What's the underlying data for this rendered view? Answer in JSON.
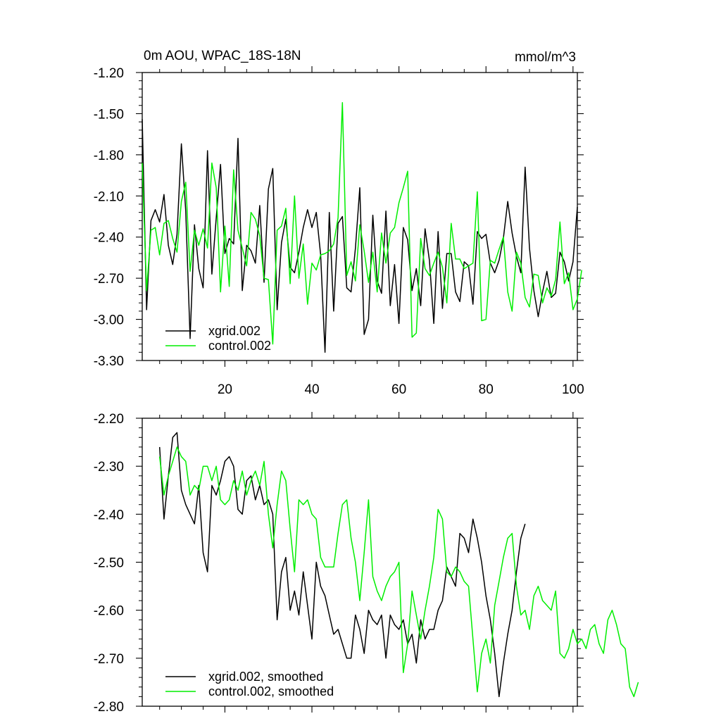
{
  "colors": {
    "xgrid": "#000000",
    "control": "#00ee00",
    "axis": "#000000",
    "background": "#ffffff"
  },
  "chart_data": [
    {
      "type": "line",
      "title": "0m AOU, WPAC_18S-18N",
      "units": "mmol/m^3",
      "xlabel": "",
      "ylabel": "",
      "xlim": [
        1,
        101
      ],
      "ylim": [
        -3.3,
        -1.2
      ],
      "yticks": [
        -1.2,
        -1.5,
        -1.8,
        -2.1,
        -2.4,
        -2.7,
        -3.0,
        -3.3
      ],
      "ytick_labels": [
        "-1.20",
        "-1.50",
        "-1.80",
        "-2.10",
        "-2.40",
        "-2.70",
        "-3.00",
        "-3.30"
      ],
      "xticks": [
        20,
        40,
        60,
        80,
        100
      ],
      "xtick_labels": [
        "20",
        "40",
        "60",
        "80",
        "100"
      ],
      "legend_position": "bottom-left",
      "series": [
        {
          "name": "xgrid.002",
          "color": "#000000",
          "x_start": 1,
          "values": [
            -1.54,
            -2.93,
            -2.28,
            -2.2,
            -2.29,
            -2.09,
            -2.46,
            -2.6,
            -2.38,
            -1.72,
            -2.21,
            -3.14,
            -2.31,
            -2.63,
            -2.77,
            -1.77,
            -2.67,
            -2.26,
            -1.87,
            -2.52,
            -2.41,
            -2.45,
            -1.68,
            -2.79,
            -2.46,
            -2.5,
            -2.59,
            -2.17,
            -2.73,
            -2.05,
            -1.9,
            -2.93,
            -2.44,
            -2.27,
            -2.62,
            -2.66,
            -2.51,
            -2.33,
            -2.2,
            -2.33,
            -2.22,
            -2.53,
            -3.24,
            -2.22,
            -2.94,
            -2.3,
            -2.25,
            -2.77,
            -2.8,
            -2.48,
            -2.04,
            -3.11,
            -3.0,
            -2.24,
            -2.72,
            -2.81,
            -2.21,
            -2.9,
            -2.6,
            -3.03,
            -2.33,
            -2.42,
            -2.79,
            -2.63,
            -2.9,
            -2.34,
            -2.57,
            -3.03,
            -2.36,
            -2.92,
            -2.52,
            -2.52,
            -2.8,
            -2.87,
            -2.58,
            -2.61,
            -2.89,
            -2.36,
            -2.41,
            -2.38,
            -2.59,
            -2.66,
            -2.57,
            -2.41,
            -2.14,
            -2.37,
            -2.54,
            -2.66,
            -1.89,
            -2.48,
            -2.79,
            -2.98,
            -2.8,
            -2.65,
            -2.84,
            -2.81,
            -2.51,
            -2.58,
            -2.72,
            -2.58,
            -2.18
          ]
        },
        {
          "name": "control.002",
          "color": "#00ee00",
          "x_start": 1,
          "values": [
            -1.86,
            -2.79,
            -2.35,
            -2.33,
            -2.53,
            -2.3,
            -2.28,
            -2.41,
            -2.51,
            -2.14,
            -2.0,
            -2.65,
            -2.35,
            -2.46,
            -2.34,
            -2.48,
            -1.86,
            -2.04,
            -2.8,
            -2.32,
            -2.76,
            -1.91,
            -2.35,
            -2.48,
            -2.61,
            -2.22,
            -2.27,
            -2.39,
            -2.7,
            -2.71,
            -3.18,
            -2.35,
            -2.32,
            -2.19,
            -2.74,
            -2.1,
            -2.7,
            -2.45,
            -2.89,
            -2.59,
            -2.64,
            -2.53,
            -2.52,
            -2.5,
            -2.45,
            -2.26,
            -1.42,
            -2.68,
            -2.58,
            -2.72,
            -2.31,
            -2.5,
            -2.73,
            -2.51,
            -2.8,
            -2.37,
            -2.59,
            -2.37,
            -2.33,
            -2.15,
            -2.04,
            -1.92,
            -3.13,
            -3.1,
            -2.41,
            -2.63,
            -2.68,
            -2.59,
            -2.51,
            -2.62,
            -2.88,
            -2.3,
            -2.56,
            -2.56,
            -2.63,
            -2.61,
            -2.59,
            -2.07,
            -3.01,
            -3.0,
            -2.57,
            -2.59,
            -2.49,
            -2.4,
            -2.8,
            -2.94,
            -2.51,
            -2.59,
            -2.84,
            -2.91,
            -2.67,
            -2.68,
            -2.88,
            -2.77,
            -2.83,
            -2.71,
            -2.29,
            -2.74,
            -2.66,
            -2.93,
            -2.85,
            -2.64
          ]
        }
      ]
    },
    {
      "type": "line",
      "title": "",
      "xlabel": "",
      "ylabel": "",
      "xlim": [
        1,
        101
      ],
      "ylim": [
        -2.8,
        -2.2
      ],
      "yticks": [
        -2.2,
        -2.3,
        -2.4,
        -2.5,
        -2.6,
        -2.7,
        -2.8
      ],
      "ytick_labels": [
        "-2.20",
        "-2.30",
        "-2.40",
        "-2.50",
        "-2.60",
        "-2.70",
        "-2.80"
      ],
      "xticks": [
        20,
        40,
        60,
        80,
        100
      ],
      "xtick_labels": [],
      "legend_position": "bottom-left",
      "series": [
        {
          "name": "xgrid.002, smoothed",
          "color": "#000000",
          "x_start": 5,
          "values": [
            -2.26,
            -2.41,
            -2.32,
            -2.24,
            -2.23,
            -2.35,
            -2.38,
            -2.4,
            -2.42,
            -2.34,
            -2.48,
            -2.52,
            -2.34,
            -2.36,
            -2.33,
            -2.29,
            -2.28,
            -2.3,
            -2.39,
            -2.4,
            -2.33,
            -2.32,
            -2.37,
            -2.34,
            -2.38,
            -2.37,
            -2.4,
            -2.62,
            -2.52,
            -2.49,
            -2.6,
            -2.56,
            -2.61,
            -2.52,
            -2.59,
            -2.66,
            -2.5,
            -2.55,
            -2.57,
            -2.61,
            -2.65,
            -2.64,
            -2.67,
            -2.7,
            -2.7,
            -2.61,
            -2.64,
            -2.69,
            -2.6,
            -2.62,
            -2.63,
            -2.61,
            -2.7,
            -2.61,
            -2.63,
            -2.64,
            -2.62,
            -2.67,
            -2.65,
            -2.71,
            -2.62,
            -2.66,
            -2.64,
            -2.64,
            -2.6,
            -2.58,
            -2.51,
            -2.53,
            -2.55,
            -2.44,
            -2.45,
            -2.48,
            -2.41,
            -2.45,
            -2.5,
            -2.57,
            -2.62,
            -2.69,
            -2.78,
            -2.71,
            -2.65,
            -2.6,
            -2.52,
            -2.45,
            -2.42
          ]
        },
        {
          "name": "control.002, smoothed",
          "color": "#00ee00",
          "x_start": 5,
          "values": [
            -2.28,
            -2.36,
            -2.32,
            -2.29,
            -2.26,
            -2.28,
            -2.29,
            -2.36,
            -2.34,
            -2.35,
            -2.3,
            -2.3,
            -2.33,
            -2.3,
            -2.37,
            -2.38,
            -2.37,
            -2.33,
            -2.35,
            -2.31,
            -2.36,
            -2.33,
            -2.31,
            -2.34,
            -2.29,
            -2.4,
            -2.47,
            -2.38,
            -2.31,
            -2.33,
            -2.43,
            -2.52,
            -2.37,
            -2.38,
            -2.37,
            -2.4,
            -2.41,
            -2.49,
            -2.51,
            -2.51,
            -2.51,
            -2.44,
            -2.38,
            -2.37,
            -2.45,
            -2.5,
            -2.58,
            -2.48,
            -2.37,
            -2.53,
            -2.56,
            -2.58,
            -2.55,
            -2.53,
            -2.52,
            -2.5,
            -2.73,
            -2.67,
            -2.56,
            -2.61,
            -2.66,
            -2.6,
            -2.55,
            -2.49,
            -2.39,
            -2.41,
            -2.52,
            -2.53,
            -2.51,
            -2.52,
            -2.54,
            -2.55,
            -2.66,
            -2.77,
            -2.69,
            -2.66,
            -2.71,
            -2.59,
            -2.54,
            -2.49,
            -2.45,
            -2.44,
            -2.55,
            -2.61,
            -2.6,
            -2.64,
            -2.57,
            -2.55,
            -2.58,
            -2.59,
            -2.6,
            -2.56,
            -2.69,
            -2.7,
            -2.68,
            -2.64,
            -2.67,
            -2.66,
            -2.68,
            -2.64,
            -2.63,
            -2.67,
            -2.69,
            -2.62,
            -2.6,
            -2.63,
            -2.67,
            -2.68,
            -2.76,
            -2.78,
            -2.75
          ]
        }
      ]
    }
  ]
}
